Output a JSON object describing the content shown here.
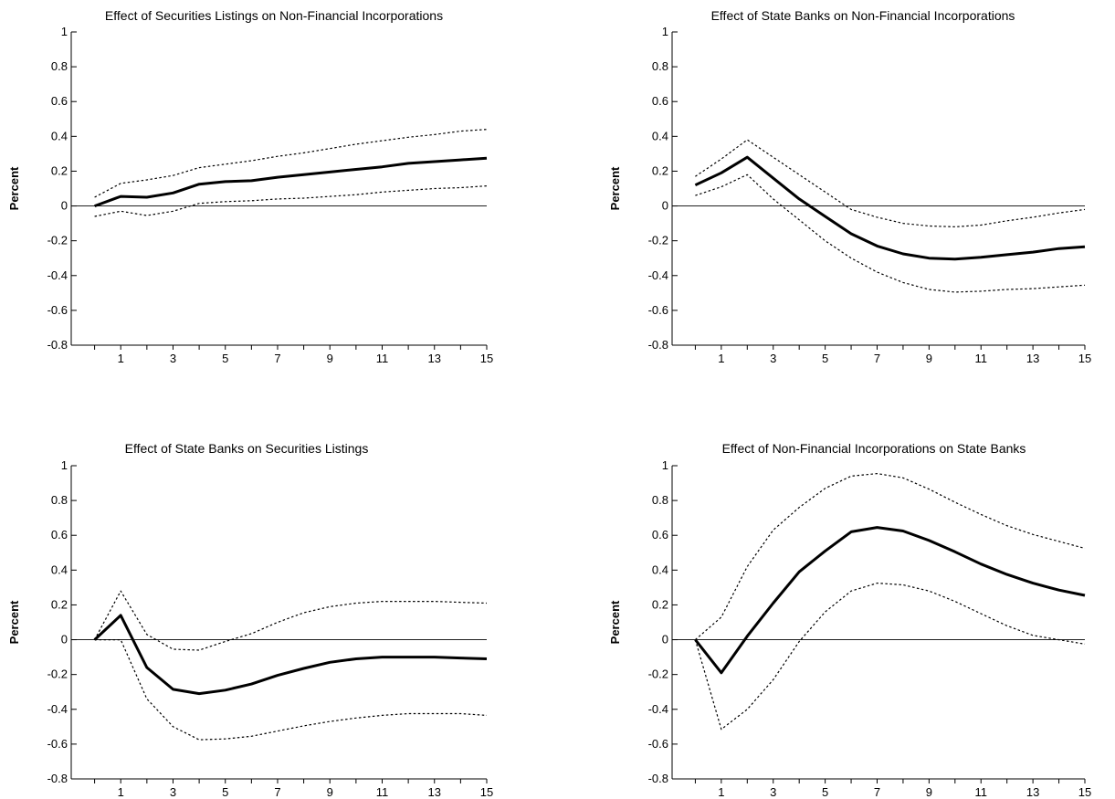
{
  "chart_data": [
    {
      "type": "line",
      "title": "Effect of Securities Listings on Non-Financial Incorporations",
      "ylabel": "Percent",
      "xlabel": "",
      "ylim": [
        -0.8,
        1
      ],
      "yticks": [
        "1",
        "0.8",
        "0.6",
        "0.4",
        "0.2",
        "0",
        "-0.2",
        "-0.4",
        "-0.6",
        "-0.8"
      ],
      "xtick_labels": [
        "1",
        "3",
        "5",
        "7",
        "9",
        "11",
        "13",
        "15"
      ],
      "x": [
        0,
        1,
        2,
        3,
        4,
        5,
        6,
        7,
        8,
        9,
        10,
        11,
        12,
        13,
        14,
        15
      ],
      "series": [
        {
          "role": "response",
          "style": "solid",
          "values": [
            0.0,
            0.055,
            0.05,
            0.075,
            0.125,
            0.14,
            0.145,
            0.165,
            0.18,
            0.195,
            0.21,
            0.225,
            0.245,
            0.255,
            0.265,
            0.275
          ]
        },
        {
          "role": "upper-band",
          "style": "dotted",
          "values": [
            0.05,
            0.13,
            0.15,
            0.175,
            0.22,
            0.24,
            0.26,
            0.285,
            0.305,
            0.33,
            0.355,
            0.375,
            0.395,
            0.41,
            0.43,
            0.44
          ]
        },
        {
          "role": "lower-band",
          "style": "dotted",
          "values": [
            -0.06,
            -0.03,
            -0.055,
            -0.03,
            0.015,
            0.025,
            0.03,
            0.04,
            0.045,
            0.055,
            0.065,
            0.08,
            0.09,
            0.1,
            0.105,
            0.115
          ]
        }
      ]
    },
    {
      "type": "line",
      "title": "Effect of State Banks on Non-Financial Incorporations",
      "ylabel": "Percent",
      "xlabel": "",
      "ylim": [
        -0.8,
        1
      ],
      "yticks": [
        "1",
        "0.8",
        "0.6",
        "0.4",
        "0.2",
        "0",
        "-0.2",
        "-0.4",
        "-0.6",
        "-0.8"
      ],
      "xtick_labels": [
        "1",
        "3",
        "5",
        "7",
        "9",
        "11",
        "13",
        "15"
      ],
      "x": [
        0,
        1,
        2,
        3,
        4,
        5,
        6,
        7,
        8,
        9,
        10,
        11,
        12,
        13,
        14,
        15
      ],
      "series": [
        {
          "role": "response",
          "style": "solid",
          "values": [
            0.12,
            0.19,
            0.28,
            0.16,
            0.04,
            -0.06,
            -0.16,
            -0.23,
            -0.275,
            -0.3,
            -0.305,
            -0.295,
            -0.28,
            -0.265,
            -0.245,
            -0.235
          ]
        },
        {
          "role": "upper-band",
          "style": "dotted",
          "values": [
            0.17,
            0.27,
            0.38,
            0.28,
            0.18,
            0.08,
            -0.02,
            -0.065,
            -0.1,
            -0.115,
            -0.12,
            -0.11,
            -0.085,
            -0.065,
            -0.04,
            -0.02
          ]
        },
        {
          "role": "lower-band",
          "style": "dotted",
          "values": [
            0.06,
            0.11,
            0.18,
            0.04,
            -0.08,
            -0.2,
            -0.3,
            -0.38,
            -0.44,
            -0.48,
            -0.495,
            -0.49,
            -0.48,
            -0.475,
            -0.465,
            -0.455
          ]
        }
      ]
    },
    {
      "type": "line",
      "title": "Effect of State Banks on Securities Listings",
      "ylabel": "Percent",
      "xlabel": "",
      "ylim": [
        -0.8,
        1
      ],
      "yticks": [
        "1",
        "0.8",
        "0.6",
        "0.4",
        "0.2",
        "0",
        "-0.2",
        "-0.4",
        "-0.6",
        "-0.8"
      ],
      "xtick_labels": [
        "1",
        "3",
        "5",
        "7",
        "9",
        "11",
        "13",
        "15"
      ],
      "x": [
        0,
        1,
        2,
        3,
        4,
        5,
        6,
        7,
        8,
        9,
        10,
        11,
        12,
        13,
        14,
        15
      ],
      "series": [
        {
          "role": "response",
          "style": "solid",
          "values": [
            0.0,
            0.14,
            -0.16,
            -0.285,
            -0.31,
            -0.29,
            -0.255,
            -0.205,
            -0.165,
            -0.13,
            -0.11,
            -0.1,
            -0.1,
            -0.1,
            -0.105,
            -0.11
          ]
        },
        {
          "role": "upper-band",
          "style": "dotted",
          "values": [
            0.0,
            0.28,
            0.03,
            -0.055,
            -0.06,
            -0.01,
            0.035,
            0.1,
            0.155,
            0.19,
            0.21,
            0.22,
            0.22,
            0.22,
            0.215,
            0.21
          ]
        },
        {
          "role": "lower-band",
          "style": "dotted",
          "values": [
            0.0,
            0.0,
            -0.34,
            -0.5,
            -0.575,
            -0.57,
            -0.555,
            -0.525,
            -0.495,
            -0.47,
            -0.45,
            -0.435,
            -0.425,
            -0.425,
            -0.425,
            -0.435
          ]
        }
      ]
    },
    {
      "type": "line",
      "title": "Effect of Non-Financial Incorporations on State Banks",
      "ylabel": "Percent",
      "xlabel": "",
      "ylim": [
        -0.8,
        1
      ],
      "yticks": [
        "1",
        "0.8",
        "0.6",
        "0.4",
        "0.2",
        "0",
        "-0.2",
        "-0.4",
        "-0.6",
        "-0.8"
      ],
      "xtick_labels": [
        "1",
        "3",
        "5",
        "7",
        "9",
        "11",
        "13",
        "15"
      ],
      "x": [
        0,
        1,
        2,
        3,
        4,
        5,
        6,
        7,
        8,
        9,
        10,
        11,
        12,
        13,
        14,
        15
      ],
      "series": [
        {
          "role": "response",
          "style": "solid",
          "values": [
            0.0,
            -0.19,
            0.02,
            0.21,
            0.39,
            0.51,
            0.62,
            0.645,
            0.625,
            0.57,
            0.505,
            0.435,
            0.375,
            0.325,
            0.285,
            0.255
          ]
        },
        {
          "role": "upper-band",
          "style": "dotted",
          "values": [
            0.0,
            0.13,
            0.42,
            0.63,
            0.76,
            0.87,
            0.94,
            0.955,
            0.93,
            0.865,
            0.79,
            0.72,
            0.655,
            0.605,
            0.565,
            0.525
          ]
        },
        {
          "role": "lower-band",
          "style": "dotted",
          "values": [
            0.0,
            -0.515,
            -0.4,
            -0.23,
            -0.01,
            0.16,
            0.28,
            0.325,
            0.315,
            0.28,
            0.22,
            0.15,
            0.08,
            0.025,
            0.0,
            -0.025
          ]
        }
      ]
    }
  ]
}
